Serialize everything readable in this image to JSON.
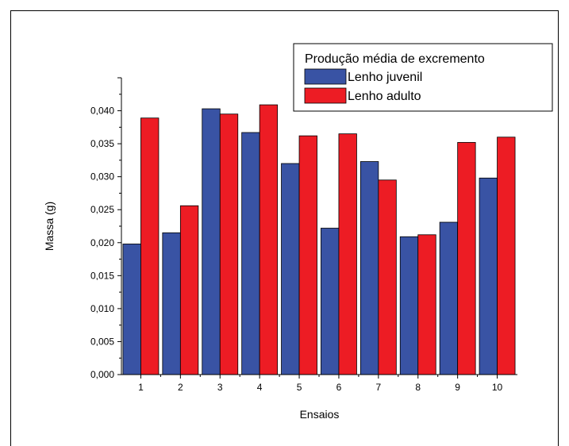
{
  "chart_data": {
    "type": "bar",
    "xlabel": "Ensaios",
    "ylabel": "Massa (g)",
    "ylim": [
      0,
      0.045
    ],
    "y_ticks": [
      0.0,
      0.005,
      0.01,
      0.015,
      0.02,
      0.025,
      0.03,
      0.035,
      0.04
    ],
    "y_tick_labels": [
      "0,000",
      "0,005",
      "0,010",
      "0,015",
      "0,020",
      "0,025",
      "0,030",
      "0,035",
      "0,040"
    ],
    "categories": [
      "1",
      "2",
      "3",
      "4",
      "5",
      "6",
      "7",
      "8",
      "9",
      "10"
    ],
    "legend": {
      "title": "Produção média de excremento",
      "position": "top-right"
    },
    "series": [
      {
        "name": "Lenho juvenil",
        "color": "#3953a4",
        "values": [
          0.0198,
          0.0215,
          0.0403,
          0.0367,
          0.032,
          0.0222,
          0.0323,
          0.0209,
          0.0231,
          0.0298
        ]
      },
      {
        "name": "Lenho adulto",
        "color": "#ed1c24",
        "values": [
          0.0389,
          0.0256,
          0.0395,
          0.0409,
          0.0362,
          0.0365,
          0.0295,
          0.0212,
          0.0352,
          0.036
        ]
      }
    ]
  }
}
